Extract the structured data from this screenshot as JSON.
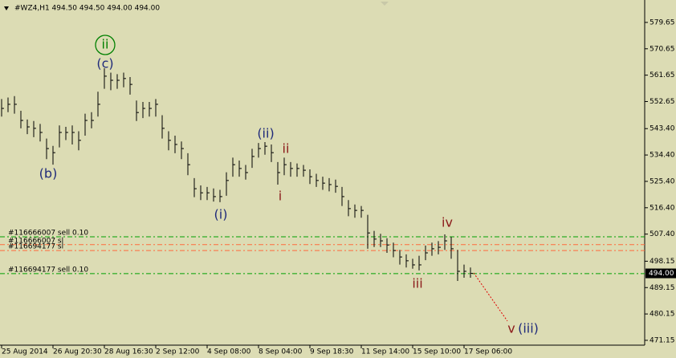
{
  "chart_data": {
    "type": "ohlc",
    "title": "#WZ4,H1  494.50 494.50 494.00 494.00",
    "categories": [
      "25 Aug 2014",
      null,
      null,
      null,
      null,
      null,
      null,
      null,
      "26 Aug 20:30",
      null,
      null,
      null,
      null,
      null,
      null,
      null,
      "28 Aug 16:30",
      null,
      null,
      null,
      null,
      null,
      null,
      null,
      "2 Sep 12:00",
      null,
      null,
      null,
      null,
      null,
      null,
      null,
      "4 Sep 08:00",
      null,
      null,
      null,
      null,
      null,
      null,
      null,
      "8 Sep 04:00",
      null,
      null,
      null,
      null,
      null,
      null,
      null,
      "9 Sep 18:30",
      null,
      null,
      null,
      null,
      null,
      null,
      null,
      "11 Sep 14:00",
      null,
      null,
      null,
      null,
      null,
      null,
      null,
      "15 Sep 10:00",
      null,
      null,
      null,
      null,
      null,
      null,
      null,
      "17 Sep 06:00",
      null
    ],
    "high": [
      553.5,
      554.0,
      554.5,
      549.5,
      546.5,
      546.0,
      545.0,
      540.0,
      537.5,
      544.5,
      544.0,
      544.5,
      542.5,
      548.5,
      549.0,
      556.0,
      564.0,
      562.5,
      562.0,
      562.5,
      561.0,
      553.0,
      552.5,
      552.5,
      553.5,
      548.0,
      542.5,
      541.0,
      539.0,
      535.0,
      526.5,
      524.0,
      523.5,
      523.0,
      522.5,
      528.5,
      533.5,
      532.5,
      531.0,
      536.5,
      538.5,
      538.8,
      538.0,
      532.0,
      533.5,
      532.0,
      531.5,
      531.0,
      529.5,
      528.0,
      527.0,
      526.5,
      526.0,
      523.5,
      519.0,
      517.5,
      517.0,
      514.0,
      508.5,
      507.5,
      506.0,
      504.5,
      502.0,
      500.5,
      499.0,
      500.0,
      503.5,
      504.5,
      505.0,
      507.3,
      506.5,
      502.0,
      497.0,
      496.0
    ],
    "low": [
      547.5,
      549.0,
      548.5,
      543.5,
      541.5,
      540.5,
      539.0,
      533.0,
      531.1,
      537.0,
      539.5,
      538.0,
      536.0,
      541.0,
      543.5,
      547.5,
      557.0,
      556.5,
      557.0,
      557.5,
      555.0,
      546.0,
      547.0,
      547.5,
      547.5,
      540.0,
      536.0,
      535.0,
      533.0,
      527.5,
      520.0,
      519.0,
      519.0,
      518.5,
      518.3,
      520.5,
      527.0,
      527.0,
      526.0,
      530.0,
      533.5,
      534.5,
      532.0,
      524.3,
      527.5,
      527.0,
      527.0,
      527.0,
      524.5,
      523.5,
      522.5,
      522.0,
      521.5,
      517.0,
      513.5,
      513.0,
      513.0,
      502.4,
      503.0,
      503.0,
      501.0,
      499.5,
      497.0,
      496.0,
      495.6,
      495.0,
      498.5,
      500.0,
      500.5,
      502.0,
      499.0,
      491.4,
      492.5,
      492.5
    ],
    "close": [
      550.3,
      551.7,
      551.7,
      546.2,
      544.0,
      543.5,
      542.1,
      536.6,
      535.2,
      542.1,
      542.1,
      542.1,
      539.4,
      546.2,
      546.2,
      551.7,
      561.3,
      559.9,
      559.9,
      560.5,
      558.5,
      548.9,
      550.3,
      550.3,
      551.7,
      543.5,
      539.4,
      538.0,
      536.6,
      531.1,
      522.9,
      521.5,
      521.5,
      520.2,
      520.2,
      525.7,
      531.1,
      529.8,
      528.4,
      533.9,
      536.6,
      537.4,
      535.2,
      528.4,
      531.1,
      529.8,
      529.8,
      529.2,
      527.0,
      525.7,
      524.8,
      524.3,
      523.7,
      520.2,
      516.1,
      515.5,
      515.5,
      507.8,
      505.7,
      505.1,
      503.7,
      501.8,
      499.6,
      498.3,
      496.9,
      496.9,
      501.0,
      502.4,
      502.9,
      505.1,
      502.4,
      494.7,
      494.7,
      494.0
    ],
    "color": "#000000",
    "ylim": [
      469.5,
      587.3
    ],
    "yticks": [
      579.65,
      570.65,
      561.65,
      552.65,
      {
        "value": 543.4,
        "label": "543.40"
      },
      {
        "value": 534.4,
        "label": "534.40"
      },
      {
        "value": 525.4,
        "label": "525.40"
      },
      {
        "value": 516.4,
        "label": "516.40"
      },
      {
        "value": 507.4,
        "label": "507.40"
      },
      498.15,
      489.15,
      480.15,
      471.15
    ],
    "current_price": {
      "value": 494.0,
      "label": "494.00"
    },
    "orders": [
      {
        "label": "#116666007 sell 0.10",
        "price": 506.5,
        "color": "#00a000"
      },
      {
        "label": "#116666007 sl",
        "price": 503.8,
        "color": "#ff6a3c"
      },
      {
        "label": "#116694177 sl",
        "price": 501.8,
        "color": "#ff6a3c"
      },
      {
        "label": "#116694177 sell 0.10",
        "price": 493.9,
        "color": "#00a000"
      }
    ],
    "annotations": [
      "ii",
      "(c)",
      "(b)",
      "(i)",
      "(ii)",
      "ii",
      "i",
      "iii",
      "iv",
      "v",
      "(iii)"
    ]
  }
}
